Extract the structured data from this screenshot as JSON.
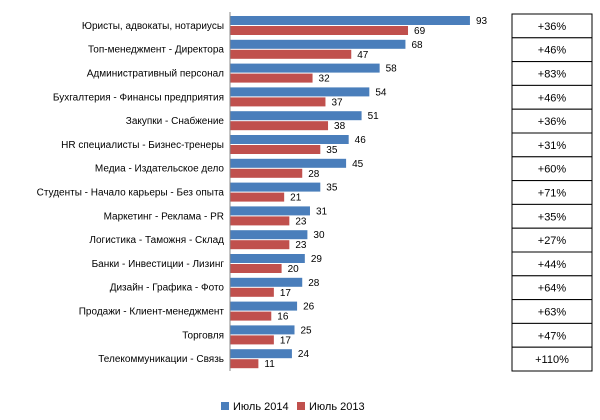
{
  "chart_data": {
    "type": "bar",
    "orientation": "horizontal",
    "categories": [
      "Юристы, адвокаты, нотариусы",
      "Топ-менеджмент  - Директора",
      "Административный персонал",
      "Бухгалтерия - Финансы предприятия",
      "Закупки - Снабжение",
      "HR специалисты - Бизнес-тренеры",
      "Медиа - Издательское дело",
      "Студенты - Начало карьеры - Без опыта",
      "Маркетинг - Реклама - PR",
      "Логистика - Таможня - Склад",
      "Банки - Инвестиции - Лизинг",
      "Дизайн - Графика - Фото",
      "Продажи - Клиент-менеджмент",
      "Торговля",
      "Телекоммуникации - Связь"
    ],
    "series": [
      {
        "name": "Июль 2014",
        "color": "#4a7ebb",
        "values": [
          93,
          68,
          58,
          54,
          51,
          46,
          45,
          35,
          31,
          30,
          29,
          28,
          26,
          25,
          24
        ]
      },
      {
        "name": "Июль 2013",
        "color": "#c0504d",
        "values": [
          69,
          47,
          32,
          37,
          38,
          35,
          28,
          21,
          23,
          23,
          20,
          17,
          16,
          17,
          11
        ]
      }
    ],
    "change_labels": [
      "+36%",
      "+46%",
      "+83%",
      "+46%",
      "+36%",
      "+31%",
      "+60%",
      "+71%",
      "+35%",
      "+27%",
      "+44%",
      "+64%",
      "+63%",
      "+47%",
      "+110%"
    ],
    "xlim": [
      0,
      100
    ],
    "grid": false,
    "legend_position": "bottom"
  }
}
